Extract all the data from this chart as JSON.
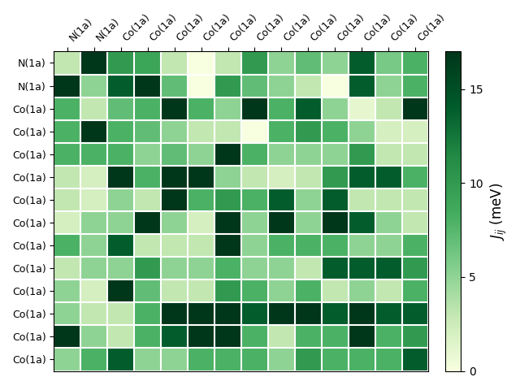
{
  "row_labels": [
    "N(1a)",
    "N(1a)",
    "Co(1a)",
    "Co(1a)",
    "Co(1a)",
    "Co(1a)",
    "Co(1a)",
    "Co(1a)",
    "Co(1a)",
    "Co(1a)",
    "Co(1a)",
    "Co(1a)",
    "Co(1a)",
    "Co(1a)"
  ],
  "col_labels": [
    "N(1a)",
    "N(1a)",
    "Co(1a)",
    "Co(1a)",
    "Co(1a)",
    "Co(1a)",
    "Co(1a)",
    "Co(1a)",
    "Co(1a)",
    "Co(1a)",
    "Co(1a)",
    "Co(1a)",
    "Co(1a)",
    "Co(1a)"
  ],
  "matrix": [
    [
      3,
      17,
      10,
      9,
      3,
      0,
      3,
      10,
      5,
      7,
      5,
      14,
      6,
      8
    ],
    [
      17,
      5,
      14,
      17,
      7,
      0,
      10,
      7,
      5,
      3,
      0,
      14,
      5,
      8
    ],
    [
      8,
      3,
      7,
      8,
      17,
      8,
      5,
      17,
      8,
      14,
      5,
      1,
      3,
      17
    ],
    [
      8,
      17,
      8,
      7,
      5,
      3,
      3,
      0,
      8,
      10,
      8,
      5,
      2,
      2
    ],
    [
      8,
      8,
      8,
      5,
      7,
      5,
      17,
      8,
      5,
      5,
      5,
      10,
      3,
      3
    ],
    [
      3,
      2,
      17,
      8,
      17,
      17,
      5,
      3,
      2,
      3,
      10,
      14,
      14,
      8
    ],
    [
      3,
      2,
      5,
      3,
      17,
      8,
      10,
      8,
      14,
      5,
      14,
      3,
      3,
      3
    ],
    [
      2,
      5,
      5,
      17,
      5,
      2,
      17,
      5,
      17,
      5,
      17,
      14,
      5,
      3
    ],
    [
      8,
      5,
      14,
      3,
      3,
      3,
      17,
      5,
      8,
      8,
      8,
      5,
      5,
      8
    ],
    [
      3,
      5,
      5,
      10,
      5,
      5,
      8,
      5,
      5,
      3,
      14,
      14,
      14,
      10
    ],
    [
      5,
      2,
      17,
      7,
      3,
      3,
      10,
      8,
      5,
      8,
      3,
      5,
      3,
      8
    ],
    [
      5,
      3,
      3,
      8,
      17,
      17,
      17,
      14,
      17,
      17,
      14,
      17,
      14,
      14
    ],
    [
      17,
      5,
      3,
      8,
      14,
      17,
      17,
      8,
      3,
      8,
      8,
      17,
      8,
      10
    ],
    [
      5,
      8,
      14,
      5,
      5,
      8,
      8,
      8,
      5,
      10,
      8,
      8,
      8,
      14
    ]
  ],
  "vmin": 0,
  "vmax": 17,
  "cmap": "YlGn",
  "colorbar_label": "$J_{ij}$ (meV)",
  "colorbar_ticks": [
    0,
    5,
    10,
    15
  ],
  "figsize": [
    6.4,
    4.8
  ],
  "dpi": 100
}
